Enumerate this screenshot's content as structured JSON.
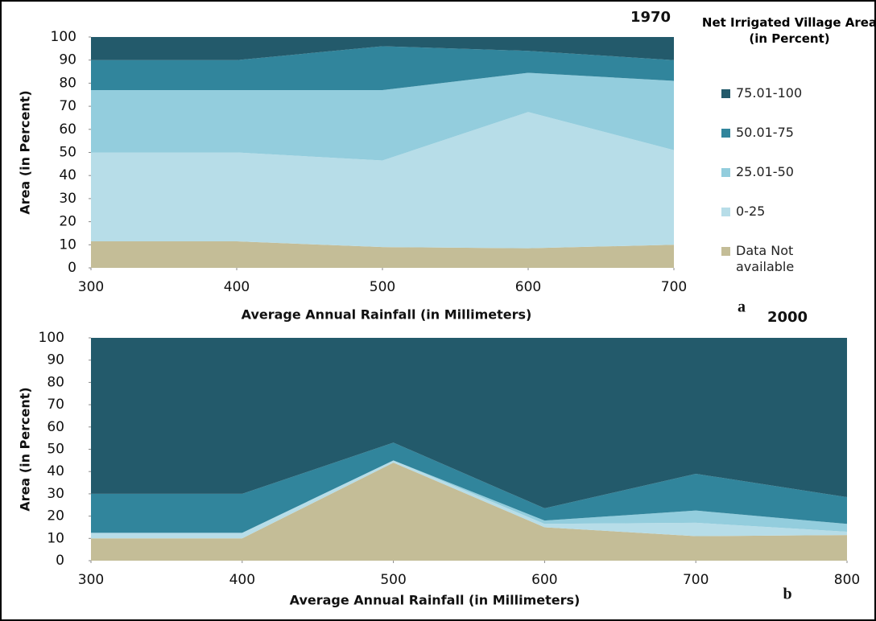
{
  "chart_data": [
    {
      "type": "stacked-area",
      "title": "1970",
      "panel_label": "a",
      "x_label": "Average Annual Rainfall (in Millimeters)",
      "y_label": "Area (in Percent)",
      "legend_title": "Net Irrigated Village Area (in Percent)",
      "legend": "right",
      "x": [
        300,
        400,
        500,
        600,
        700
      ],
      "xlim": [
        300,
        700
      ],
      "xticks": [
        300,
        400,
        500,
        600,
        700
      ],
      "ylim": [
        0,
        100
      ],
      "yticks": [
        0,
        10,
        20,
        30,
        40,
        50,
        60,
        70,
        80,
        90,
        100
      ],
      "series": [
        {
          "name": "Data Not available",
          "color": "#c4bd97",
          "values": [
            11.5,
            11.5,
            9,
            8.5,
            10
          ]
        },
        {
          "name": "0-25",
          "color": "#b7dde8",
          "values": [
            38.5,
            38.5,
            37.5,
            59,
            41
          ]
        },
        {
          "name": "25.01-50",
          "color": "#93cddd",
          "values": [
            27,
            27,
            30.5,
            17,
            30
          ]
        },
        {
          "name": "50.01-75",
          "color": "#31859c",
          "values": [
            13,
            13,
            19,
            9.5,
            9
          ]
        },
        {
          "name": "75.01-100",
          "color": "#235a6b",
          "values": [
            10,
            10,
            4,
            6,
            10
          ]
        }
      ]
    },
    {
      "type": "stacked-area",
      "title": "2000",
      "panel_label": "b",
      "x_label": "Average Annual Rainfall (in Millimeters)",
      "y_label": "Area (in Percent)",
      "x": [
        300,
        400,
        500,
        600,
        700,
        800
      ],
      "xlim": [
        300,
        800
      ],
      "xticks": [
        300,
        400,
        500,
        600,
        700,
        800
      ],
      "ylim": [
        0,
        100
      ],
      "yticks": [
        0,
        10,
        20,
        30,
        40,
        50,
        60,
        70,
        80,
        90,
        100
      ],
      "series": [
        {
          "color": "#c4bd97",
          "values": [
            10,
            10,
            44,
            15,
            11,
            11.5
          ]
        },
        {
          "color": "#b7dde8",
          "values": [
            2.5,
            2.5,
            1,
            1.5,
            6,
            1.5
          ]
        },
        {
          "color": "#93cddd",
          "values": [
            0,
            0,
            0,
            1.5,
            5.5,
            3.5
          ]
        },
        {
          "color": "#31859c",
          "values": [
            17.5,
            17.5,
            8,
            5.5,
            16.5,
            12
          ]
        },
        {
          "color": "#235a6b",
          "values": [
            70,
            70,
            47,
            76.5,
            61,
            71.5
          ]
        }
      ]
    }
  ]
}
